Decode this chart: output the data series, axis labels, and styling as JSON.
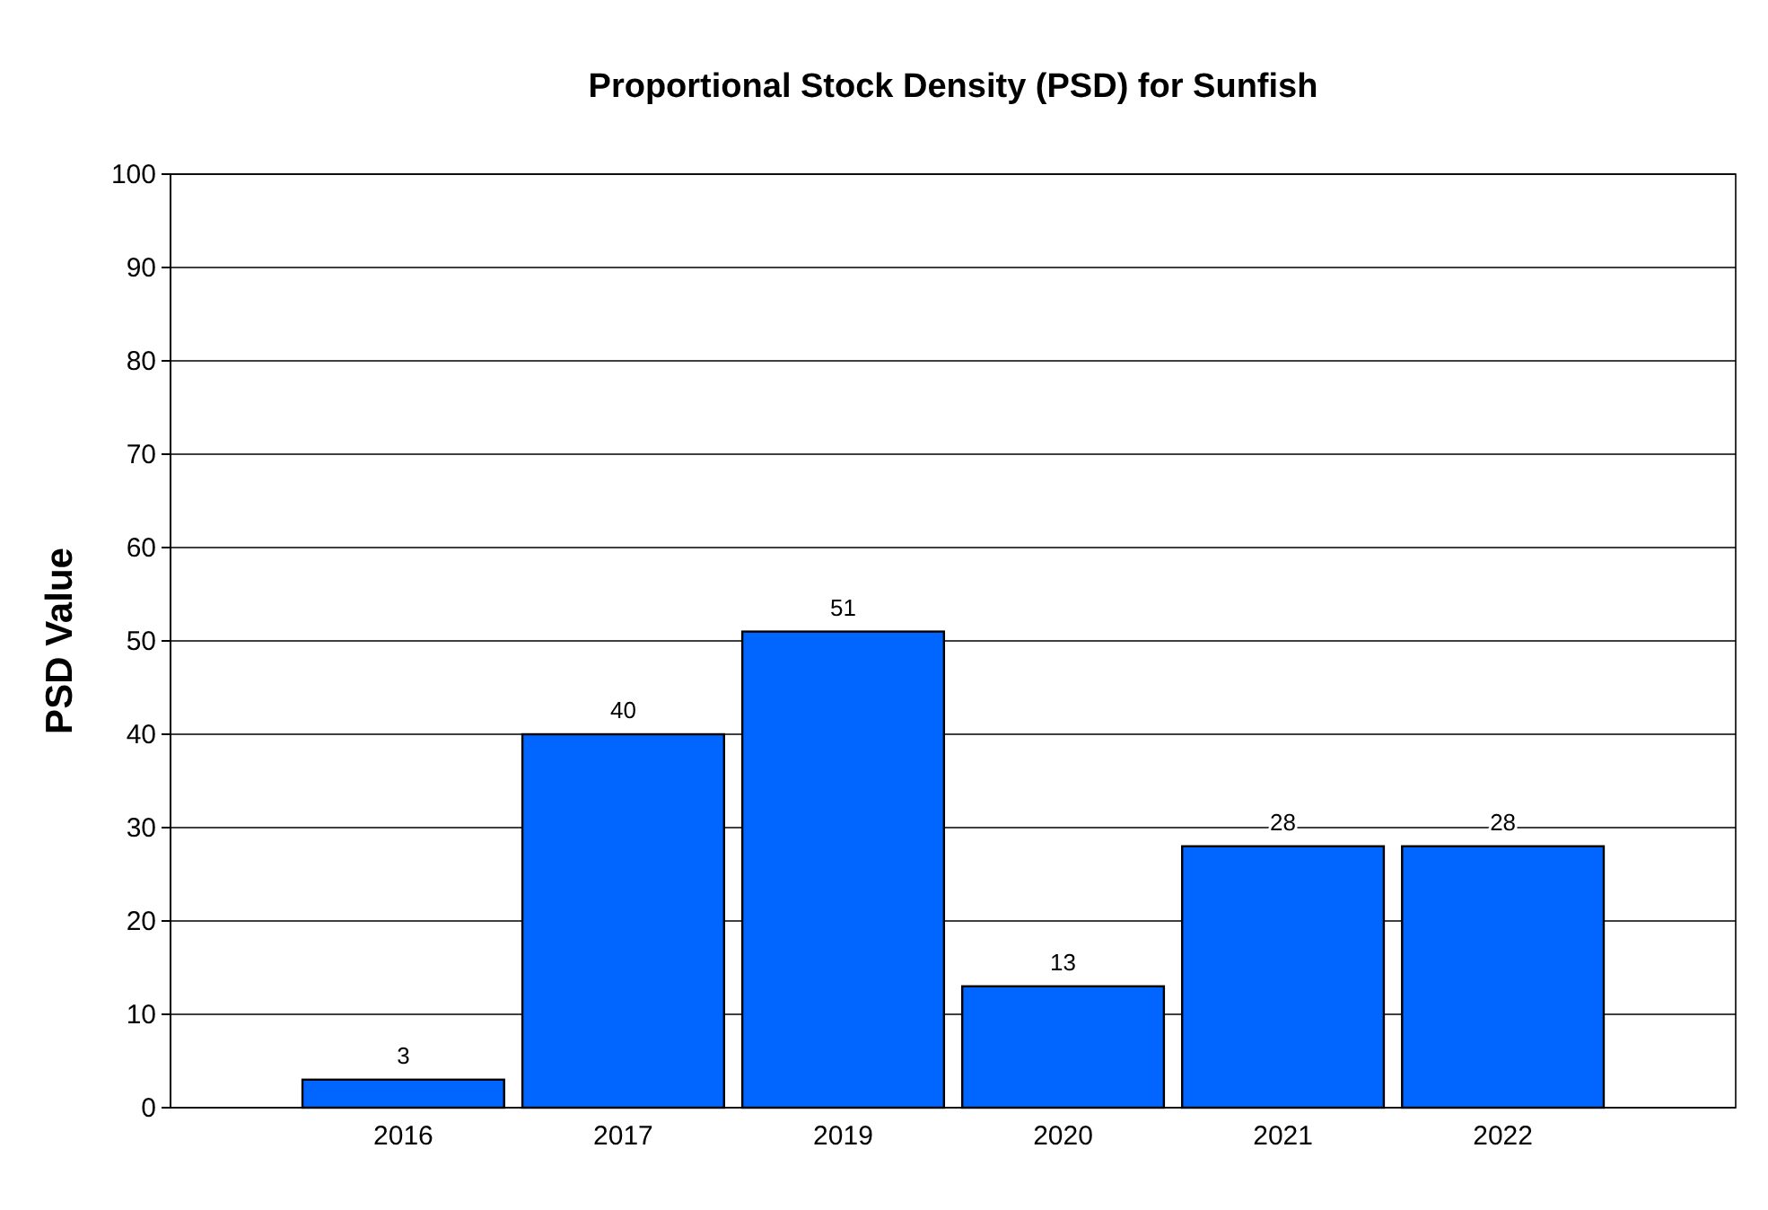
{
  "chart_data": {
    "type": "bar",
    "title": "Proportional Stock Density (PSD) for Sunfish",
    "ylabel": "PSD Value",
    "categories": [
      "2016",
      "2017",
      "2019",
      "2020",
      "2021",
      "2022"
    ],
    "values": [
      3,
      40,
      51,
      13,
      28,
      28
    ],
    "color": "#0066ff",
    "ylim": [
      0,
      100
    ],
    "yticks": [
      0,
      10,
      20,
      30,
      40,
      50,
      60,
      70,
      80,
      90,
      100
    ],
    "grid": "y",
    "data_labels": true
  }
}
